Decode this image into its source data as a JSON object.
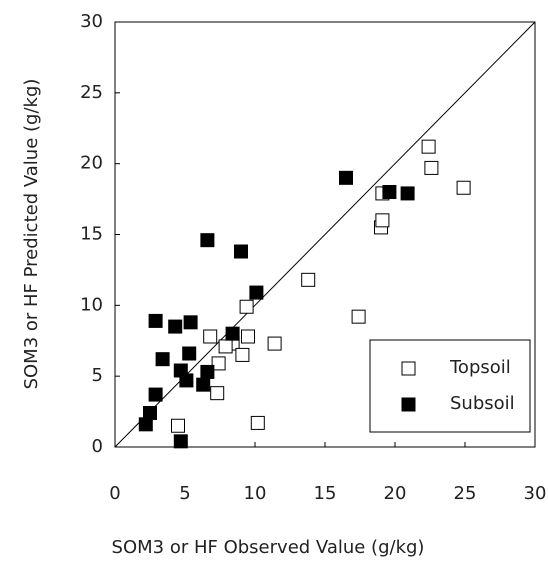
{
  "chart_data": {
    "type": "scatter",
    "x_label": "SOM3 or HF Observed Value (g/kg)",
    "y_label": "SOM3 or HF Predicted Value (g/kg)",
    "xlim": [
      0,
      30
    ],
    "ylim": [
      0,
      30
    ],
    "xticks": [
      0,
      5,
      10,
      15,
      20,
      25,
      30
    ],
    "yticks": [
      0,
      5,
      10,
      15,
      20,
      25,
      30
    ],
    "identity_line": true,
    "legend": "lower right",
    "series": [
      {
        "name": "Topsoil",
        "color": "#ffffff",
        "x": [
          19.1,
          22.4,
          22.6,
          24.9,
          19.0,
          19.1,
          13.8,
          17.4,
          9.4,
          11.4,
          6.8,
          9.5,
          8.4,
          7.9,
          9.1,
          7.4,
          7.3,
          4.5,
          10.2
        ],
        "y": [
          17.9,
          21.2,
          19.7,
          18.3,
          15.5,
          16.0,
          11.8,
          9.2,
          9.9,
          7.3,
          7.8,
          7.8,
          7.3,
          7.1,
          6.5,
          5.9,
          3.8,
          1.5,
          1.7
        ]
      },
      {
        "name": "Subsoil",
        "color": "#000000",
        "x": [
          16.5,
          19.6,
          20.9,
          6.6,
          9.0,
          10.1,
          2.9,
          4.3,
          5.4,
          8.4,
          3.4,
          5.3,
          2.9,
          4.7,
          6.6,
          5.1,
          6.3,
          2.5,
          2.2,
          4.7
        ],
        "y": [
          19.0,
          18.0,
          17.9,
          14.6,
          13.8,
          10.9,
          8.9,
          8.5,
          8.8,
          8.0,
          6.2,
          6.6,
          3.7,
          5.4,
          5.3,
          4.7,
          4.4,
          2.4,
          1.6,
          0.4
        ]
      }
    ]
  }
}
